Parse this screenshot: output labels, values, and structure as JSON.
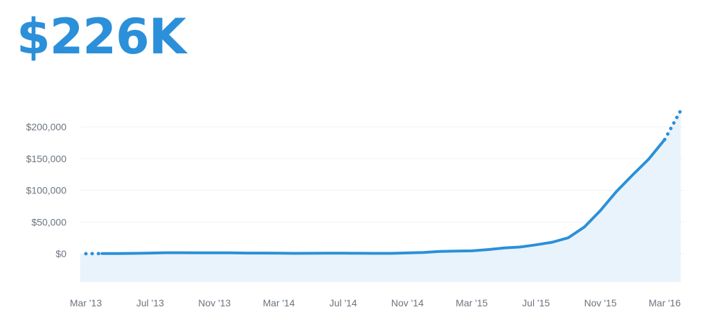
{
  "headline": {
    "value": "$226K"
  },
  "colors": {
    "accent": "#2b90d9",
    "area_fill": "#e9f3fb",
    "grid": "#eef1f4",
    "tick_text": "#6b7480"
  },
  "chart_data": {
    "type": "area",
    "title": "",
    "xlabel": "",
    "ylabel": "",
    "ylim": [
      -45000,
      200000
    ],
    "grid": true,
    "legend": "none",
    "y_ticks": [
      {
        "value": 200000,
        "label": "$200,000"
      },
      {
        "value": 150000,
        "label": "$150,000"
      },
      {
        "value": 100000,
        "label": "$100,000"
      },
      {
        "value": 50000,
        "label": "$50,000"
      },
      {
        "value": 0,
        "label": "$0"
      }
    ],
    "x_ticks": [
      {
        "date": "2013-03",
        "label": "Mar '13"
      },
      {
        "date": "2013-07",
        "label": "Jul '13"
      },
      {
        "date": "2013-11",
        "label": "Nov '13"
      },
      {
        "date": "2014-03",
        "label": "Mar '14"
      },
      {
        "date": "2014-07",
        "label": "Jul '14"
      },
      {
        "date": "2014-11",
        "label": "Nov '14"
      },
      {
        "date": "2015-03",
        "label": "Mar '15"
      },
      {
        "date": "2015-07",
        "label": "Jul '15"
      },
      {
        "date": "2015-11",
        "label": "Nov '15"
      },
      {
        "date": "2016-03",
        "label": "Mar '16"
      }
    ],
    "series": [
      {
        "values": [
          {
            "x": "2013-03",
            "y": 0,
            "style": "projected"
          },
          {
            "x": "2013-04",
            "y": 200
          },
          {
            "x": "2013-05",
            "y": 200
          },
          {
            "x": "2013-06",
            "y": 500
          },
          {
            "x": "2013-07",
            "y": 1000
          },
          {
            "x": "2013-08",
            "y": 1500
          },
          {
            "x": "2013-09",
            "y": 1500
          },
          {
            "x": "2013-10",
            "y": 1300
          },
          {
            "x": "2013-11",
            "y": 1300
          },
          {
            "x": "2013-12",
            "y": 1300
          },
          {
            "x": "2014-01",
            "y": 1000
          },
          {
            "x": "2014-02",
            "y": 1000
          },
          {
            "x": "2014-03",
            "y": 800
          },
          {
            "x": "2014-04",
            "y": 600
          },
          {
            "x": "2014-05",
            "y": 700
          },
          {
            "x": "2014-06",
            "y": 800
          },
          {
            "x": "2014-07",
            "y": 800
          },
          {
            "x": "2014-08",
            "y": 700
          },
          {
            "x": "2014-09",
            "y": 500
          },
          {
            "x": "2014-10",
            "y": 600
          },
          {
            "x": "2014-11",
            "y": 1200
          },
          {
            "x": "2014-12",
            "y": 2000
          },
          {
            "x": "2015-01",
            "y": 3500
          },
          {
            "x": "2015-02",
            "y": 4000
          },
          {
            "x": "2015-03",
            "y": 4500
          },
          {
            "x": "2015-04",
            "y": 6500
          },
          {
            "x": "2015-05",
            "y": 9000
          },
          {
            "x": "2015-06",
            "y": 10500
          },
          {
            "x": "2015-07",
            "y": 14000
          },
          {
            "x": "2015-08",
            "y": 18000
          },
          {
            "x": "2015-09",
            "y": 25000
          },
          {
            "x": "2015-10",
            "y": 42000
          },
          {
            "x": "2015-11",
            "y": 68000
          },
          {
            "x": "2015-12",
            "y": 98000
          },
          {
            "x": "2016-01",
            "y": 124000
          },
          {
            "x": "2016-02",
            "y": 149000
          },
          {
            "x": "2016-03",
            "y": 180000
          },
          {
            "x": "2016-04",
            "y": 226000,
            "style": "projected"
          }
        ]
      }
    ]
  }
}
